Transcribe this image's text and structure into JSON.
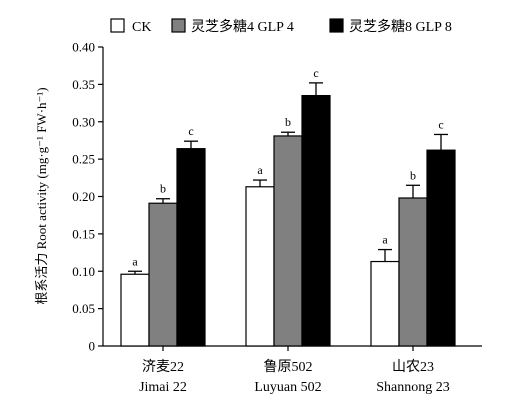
{
  "chart_data": {
    "type": "bar",
    "ylabel": "根系活力 Root activity (mg·g⁻¹ FW·h⁻¹)",
    "ylim": [
      0,
      0.4
    ],
    "yticks": [
      "0",
      "0.05",
      "0.10",
      "0.15",
      "0.20",
      "0.25",
      "0.30",
      "0.35",
      "0.40"
    ],
    "categories": [
      {
        "zh": "济麦22",
        "en": "Jimai 22"
      },
      {
        "zh": "鲁原502",
        "en": "Luyuan 502"
      },
      {
        "zh": "山农23",
        "en": "Shannong 23"
      }
    ],
    "series": [
      {
        "name": "CK",
        "color": "#ffffff",
        "values": [
          0.096,
          0.213,
          0.113
        ],
        "errors": [
          0.004,
          0.009,
          0.016
        ],
        "labels": [
          "a",
          "a",
          "a"
        ]
      },
      {
        "name": "灵芝多糖4 GLP 4",
        "color": "#808080",
        "values": [
          0.191,
          0.281,
          0.198
        ],
        "errors": [
          0.006,
          0.005,
          0.017
        ],
        "labels": [
          "b",
          "b",
          "b"
        ]
      },
      {
        "name": "灵芝多糖8 GLP 8",
        "color": "#000000",
        "values": [
          0.264,
          0.335,
          0.262
        ],
        "errors": [
          0.01,
          0.017,
          0.021
        ],
        "labels": [
          "c",
          "c",
          "c"
        ]
      }
    ],
    "legend": "top-left",
    "grid": false
  }
}
